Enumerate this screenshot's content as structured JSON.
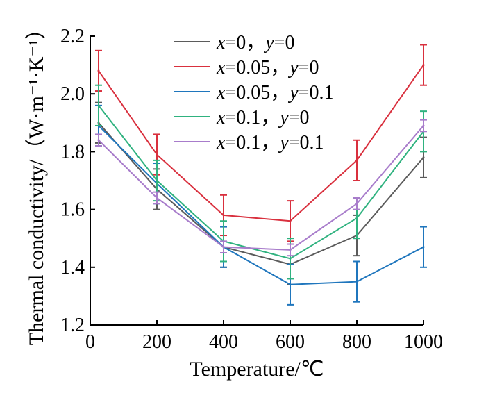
{
  "chart_data": {
    "type": "line",
    "xlabel": "Temperature/℃",
    "ylabel": "Thermal conductivity/（W·m⁻¹·K⁻¹）",
    "x": [
      25,
      200,
      400,
      600,
      800,
      1000
    ],
    "xlim": [
      0,
      1000
    ],
    "ylim": [
      1.2,
      2.2
    ],
    "xticks": [
      "0",
      "200",
      "400",
      "600",
      "800",
      "1000"
    ],
    "yticks": [
      "1.2",
      "1.4",
      "1.6",
      "1.8",
      "2.0",
      "2.2"
    ],
    "grid": false,
    "legend_position": "top-right",
    "series": [
      {
        "name": "x=0，y=0",
        "label_parts": [
          "x",
          "=0，",
          "y",
          "=0"
        ],
        "color": "#5b5b5b",
        "values": [
          1.9,
          1.67,
          1.47,
          1.41,
          1.51,
          1.78
        ],
        "errors": [
          0.07,
          0.07,
          0.07,
          0.07,
          0.07,
          0.07
        ]
      },
      {
        "name": "x=0.05，y=0",
        "label_parts": [
          "x",
          "=0.05，",
          "y",
          "=0"
        ],
        "color": "#d9303e",
        "values": [
          2.08,
          1.79,
          1.58,
          1.56,
          1.77,
          2.1
        ],
        "errors": [
          0.07,
          0.07,
          0.07,
          0.07,
          0.07,
          0.07
        ]
      },
      {
        "name": "x=0.05，y=0.1",
        "label_parts": [
          "x",
          "=0.05，",
          "y",
          "=0.1"
        ],
        "color": "#1f76bd",
        "values": [
          1.89,
          1.69,
          1.47,
          1.34,
          1.35,
          1.47
        ],
        "errors": [
          0.07,
          0.07,
          0.07,
          0.07,
          0.07,
          0.07
        ]
      },
      {
        "name": "x=0.1，y=0",
        "label_parts": [
          "x",
          "=0.1，",
          "y",
          "=0"
        ],
        "color": "#2fb27f",
        "values": [
          1.96,
          1.7,
          1.49,
          1.43,
          1.57,
          1.87
        ],
        "errors": [
          0.07,
          0.07,
          0.07,
          0.07,
          0.07,
          0.07
        ]
      },
      {
        "name": "x=0.1，y=0.1",
        "label_parts": [
          "x",
          "=0.1，",
          "y",
          "=0.1"
        ],
        "color": "#a87ccb",
        "values": [
          1.84,
          1.64,
          1.47,
          1.46,
          1.62,
          1.89
        ],
        "errors": [
          0.02,
          0.02,
          0.02,
          0.02,
          0.02,
          0.02
        ]
      }
    ]
  }
}
